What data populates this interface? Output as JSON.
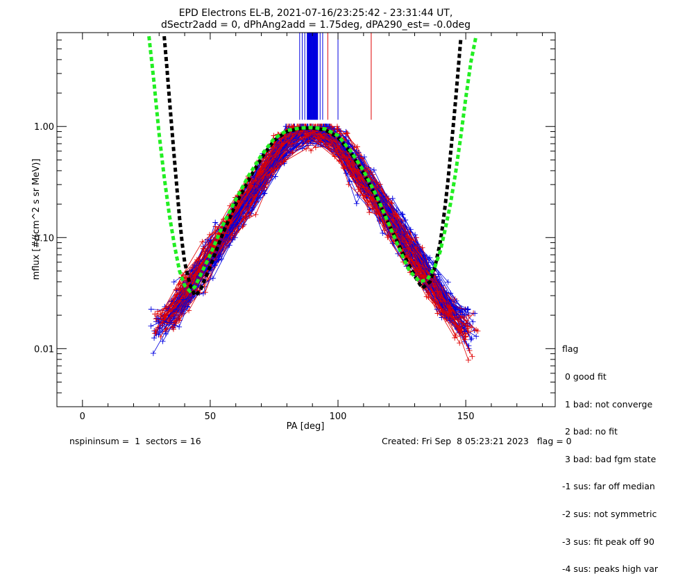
{
  "chart_data": {
    "type": "line",
    "title_line1": "EPD Electrons EL-B, 2021-07-16/23:25:42 - 23:31:44 UT,",
    "title_line2": "dSectr2add = 0, dPhAng2add = 1.75deg, dPA290_est=  -0.0deg",
    "xlabel": "PA [deg]",
    "ylabel": "mflux [#/(cm^2 s sr MeV)]",
    "xlim": [
      -10,
      185
    ],
    "ylim": [
      0.003,
      7.0
    ],
    "yscale": "log",
    "x_ticks": [
      0,
      50,
      100,
      150
    ],
    "x_tick_labels": [
      "0",
      "50",
      "100",
      "150"
    ],
    "y_ticks": [
      0.01,
      0.1,
      1.0
    ],
    "y_tick_labels": [
      "0.01",
      "0.10",
      "1.00"
    ],
    "colors": {
      "red_series": "#e00000",
      "blue_series": "#0000e0",
      "green_fit": "#22ee22",
      "black_fit": "#000000"
    },
    "green_fit_curve": {
      "x": [
        26,
        28,
        30,
        32,
        34,
        36,
        38,
        40,
        42,
        44,
        46,
        50,
        55,
        60,
        65,
        70,
        75,
        80,
        85,
        90,
        95,
        100,
        105,
        110,
        115,
        120,
        125,
        128,
        132,
        135,
        138,
        140,
        142,
        144,
        146,
        148,
        150,
        152,
        154
      ],
      "y": [
        6.5,
        2.5,
        0.85,
        0.35,
        0.16,
        0.085,
        0.05,
        0.037,
        0.033,
        0.036,
        0.045,
        0.07,
        0.13,
        0.22,
        0.36,
        0.55,
        0.78,
        0.92,
        0.97,
        0.98,
        0.95,
        0.83,
        0.6,
        0.4,
        0.24,
        0.13,
        0.07,
        0.05,
        0.04,
        0.042,
        0.055,
        0.075,
        0.12,
        0.2,
        0.38,
        0.8,
        1.8,
        3.8,
        6.5
      ]
    },
    "black_fit_curve": {
      "x": [
        32,
        33,
        34,
        35,
        36,
        37,
        38,
        39,
        40,
        42,
        44,
        46,
        50,
        55,
        60,
        65,
        70,
        75,
        80,
        85,
        90,
        95,
        100,
        105,
        110,
        115,
        120,
        125,
        130,
        133,
        136,
        138,
        140,
        141,
        142,
        143,
        144,
        145,
        146,
        147,
        148
      ],
      "y": [
        6.5,
        3.5,
        1.8,
        0.95,
        0.5,
        0.27,
        0.15,
        0.09,
        0.06,
        0.038,
        0.03,
        0.033,
        0.055,
        0.11,
        0.2,
        0.33,
        0.52,
        0.75,
        0.9,
        0.96,
        0.97,
        0.93,
        0.8,
        0.58,
        0.38,
        0.23,
        0.13,
        0.075,
        0.045,
        0.035,
        0.04,
        0.055,
        0.09,
        0.13,
        0.2,
        0.32,
        0.55,
        0.95,
        1.7,
        3.2,
        6.0
      ]
    },
    "vertical_lines": {
      "x": [
        85,
        86,
        87,
        88,
        88.5,
        89,
        89.5,
        90,
        90.5,
        91,
        91.5,
        92,
        93,
        94,
        96,
        100,
        113
      ],
      "colors": [
        "#0000e0",
        "#0000e0",
        "#0000e0",
        "#0000e0",
        "#e00000",
        "#0000e0",
        "#0000e0",
        "#0000e0",
        "#0000e0",
        "#0000e0",
        "#e00000",
        "#0000e0",
        "#0000e0",
        "#0000e0",
        "#e00000",
        "#0000e0",
        "#e00000"
      ]
    }
  },
  "legend": {
    "title": "flag",
    "items": [
      " 0 good fit",
      " 1 bad: not converge",
      " 2 bad: no fit",
      " 3 bad: bad fgm state",
      "-1 sus: far off median",
      "-2 sus: not symmetric",
      "-3 sus: fit peak off 90",
      "-4 sus: peaks high var"
    ]
  },
  "footer": {
    "left": "nspininsum =  1  sectors = 16",
    "right": "Created: Fri Sep  8 05:23:21 2023   flag = 0"
  }
}
